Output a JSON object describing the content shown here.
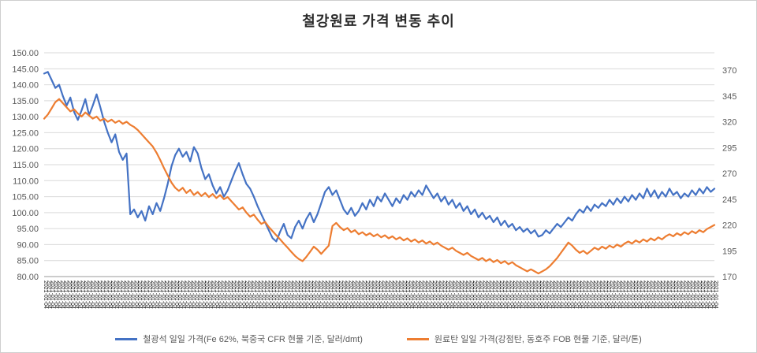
{
  "chart_data": {
    "type": "line",
    "title": "철강원료 가격 변동 추이",
    "grid": true,
    "legend_position": "bottom",
    "colors": {
      "iron_ore": "#4472C4",
      "coking_coal": "#ED7D31",
      "gridline": "#D9D9D9",
      "axis_text": "#595959",
      "xlabel_text": "#1f1f1f"
    },
    "left_axis": {
      "min": 80,
      "max": 150,
      "step": 5,
      "tick_labels": [
        "150.00",
        "145.00",
        "140.00",
        "135.00",
        "130.00",
        "125.00",
        "120.00",
        "115.00",
        "110.00",
        "105.00",
        "100.00",
        "95.00",
        "90.00",
        "85.00",
        "80.00"
      ]
    },
    "right_axis": {
      "min": 170,
      "max": 370,
      "step": 25,
      "tick_labels": [
        "370",
        "345",
        "320",
        "295",
        "270",
        "245",
        "220",
        "195",
        "170"
      ]
    },
    "x_axis": {
      "label_pattern": "2021-01-04",
      "style": "dense overlapping rotated daily date labels"
    },
    "series": [
      {
        "name": "철광석 일일 가격(Fe 62%, 북중국 CFR 현물 기준, 달러/dmt)",
        "axis": "left",
        "color": "#4472C4",
        "values": [
          143.5,
          144.0,
          141.5,
          139.0,
          140.0,
          136.5,
          133.5,
          136.0,
          131.5,
          129.0,
          132.0,
          135.5,
          130.5,
          133.5,
          137.0,
          133.0,
          128.5,
          125.0,
          122.0,
          124.5,
          119.0,
          116.5,
          118.5,
          99.5,
          101.0,
          98.5,
          100.5,
          97.5,
          102.0,
          99.5,
          103.0,
          100.5,
          104.5,
          109.0,
          114.5,
          118.0,
          120.0,
          117.5,
          119.0,
          116.0,
          120.5,
          118.5,
          114.0,
          110.5,
          112.0,
          108.5,
          106.0,
          108.0,
          105.0,
          107.0,
          110.0,
          113.0,
          115.5,
          112.0,
          109.0,
          107.5,
          105.0,
          102.0,
          99.5,
          97.0,
          94.5,
          92.0,
          91.0,
          94.0,
          96.5,
          93.0,
          92.0,
          95.5,
          97.5,
          95.0,
          98.0,
          100.0,
          97.0,
          99.5,
          103.0,
          106.5,
          108.0,
          105.5,
          107.0,
          104.0,
          101.0,
          99.5,
          101.5,
          99.0,
          100.5,
          103.0,
          101.0,
          104.0,
          102.0,
          105.0,
          103.5,
          106.0,
          104.0,
          102.0,
          104.5,
          103.0,
          105.5,
          104.0,
          106.5,
          105.0,
          107.0,
          105.5,
          108.5,
          106.5,
          104.5,
          106.0,
          103.5,
          105.0,
          102.5,
          104.0,
          101.5,
          103.0,
          100.5,
          102.0,
          99.5,
          101.0,
          98.5,
          100.0,
          98.0,
          99.0,
          97.0,
          98.5,
          96.0,
          97.5,
          95.5,
          96.5,
          94.5,
          95.5,
          94.0,
          95.0,
          93.5,
          94.5,
          92.5,
          93.0,
          94.5,
          93.5,
          95.0,
          96.5,
          95.5,
          97.0,
          98.5,
          97.5,
          99.5,
          101.0,
          100.0,
          102.0,
          100.5,
          102.5,
          101.5,
          103.0,
          102.0,
          104.0,
          102.5,
          104.5,
          103.0,
          105.0,
          103.5,
          105.5,
          104.0,
          106.0,
          104.5,
          107.5,
          105.0,
          107.0,
          104.5,
          106.5,
          105.0,
          107.5,
          105.5,
          106.5,
          104.5,
          106.0,
          105.0,
          107.0,
          105.5,
          107.5,
          106.0,
          108.0,
          106.5,
          107.5
        ]
      },
      {
        "name": "원료탄 일일 가격(강점탄, 동호주 FOB 현물 기준, 달러/톤)",
        "axis": "right",
        "color": "#ED7D31",
        "values": [
          323,
          327,
          333,
          339,
          342,
          338,
          334,
          330,
          332,
          328,
          325,
          329,
          326,
          323,
          325,
          321,
          323,
          320,
          322,
          319,
          321,
          318,
          320,
          317,
          315,
          312,
          308,
          304,
          300,
          296,
          290,
          283,
          275,
          268,
          261,
          256,
          253,
          256,
          251,
          254,
          249,
          252,
          248,
          251,
          247,
          250,
          246,
          249,
          245,
          247,
          243,
          239,
          235,
          237,
          232,
          228,
          230,
          225,
          221,
          223,
          218,
          214,
          210,
          206,
          202,
          198,
          194,
          190,
          187,
          185,
          189,
          194,
          199,
          196,
          192,
          196,
          200,
          219,
          222,
          218,
          215,
          217,
          213,
          215,
          211,
          213,
          210,
          212,
          209,
          211,
          208,
          210,
          207,
          209,
          206,
          208,
          205,
          207,
          204,
          206,
          203,
          205,
          202,
          204,
          201,
          203,
          200,
          198,
          196,
          198,
          195,
          193,
          191,
          193,
          190,
          188,
          186,
          188,
          185,
          187,
          184,
          186,
          183,
          185,
          182,
          184,
          181,
          179,
          177,
          175,
          177,
          175,
          173,
          175,
          177,
          180,
          184,
          188,
          193,
          198,
          203,
          200,
          196,
          193,
          195,
          192,
          195,
          198,
          196,
          199,
          197,
          200,
          198,
          201,
          199,
          202,
          204,
          202,
          205,
          203,
          206,
          204,
          207,
          205,
          208,
          206,
          209,
          211,
          209,
          212,
          210,
          213,
          211,
          214,
          212,
          215,
          213,
          216,
          218,
          220
        ]
      }
    ]
  }
}
